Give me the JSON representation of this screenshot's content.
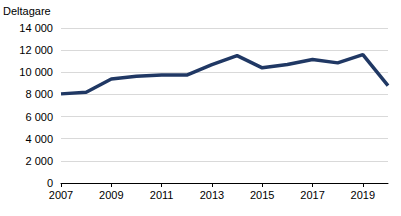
{
  "chart_data": {
    "type": "line",
    "y_label": "Deltagare",
    "x": [
      2007,
      2008,
      2009,
      2010,
      2011,
      2012,
      2013,
      2014,
      2015,
      2016,
      2017,
      2018,
      2019,
      2020
    ],
    "values": [
      8050,
      8200,
      9400,
      9650,
      9750,
      9750,
      10700,
      11500,
      10400,
      10700,
      11150,
      10850,
      11600,
      8800
    ],
    "color": "#203864",
    "xlim": [
      2007,
      2020
    ],
    "xticks": [
      2007,
      2009,
      2011,
      2013,
      2015,
      2017,
      2019
    ],
    "ylim": [
      0,
      14000
    ],
    "yticks": [
      0,
      {
        "value": 2000,
        "label": "2 000"
      },
      {
        "value": 4000,
        "label": "4 000"
      },
      {
        "value": 6000,
        "label": "6 000"
      },
      {
        "value": 8000,
        "label": "8 000"
      },
      {
        "value": 10000,
        "label": "10 000"
      },
      {
        "value": 12000,
        "label": "12 000"
      },
      {
        "value": 14000,
        "label": "14 000"
      }
    ],
    "grid": true
  }
}
